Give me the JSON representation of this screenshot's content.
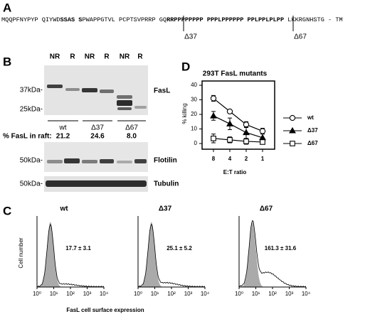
{
  "panel_a": {
    "letter": "A",
    "sequence": [
      {
        "text": "MQQPFNYPYP QIYWD",
        "bold": false
      },
      {
        "text": "SSAS S",
        "bold": true
      },
      {
        "text": "PWAPPGTVL PCPTSVPRRP GQ",
        "bold": false
      },
      {
        "text": "RRPPPPPPPP PPPLPPPPPP PPLPPLPLPP",
        "bold": true
      },
      {
        "text": " LKKRGNHSTG - TM",
        "bold": false
      }
    ],
    "markers": [
      "Δ37",
      "Δ67"
    ]
  },
  "panel_b": {
    "letter": "B",
    "lanes": [
      "NR",
      "R",
      "NR",
      "R",
      "NR",
      "R"
    ],
    "fasl_blot": {
      "markers": [
        "37kDa-",
        "25kDa-"
      ],
      "label": "FasL"
    },
    "groups": [
      "wt",
      "Δ37",
      "Δ67"
    ],
    "raft_label": "% FasL in raft:",
    "raft_values": [
      "21.2",
      "24.6",
      "8.0"
    ],
    "flotilin_blot": {
      "marker": "50kDa-",
      "label": "Flotilin"
    },
    "tubulin_blot": {
      "marker": "50kDa-",
      "label": "Tubulin"
    }
  },
  "panel_c": {
    "letter": "C",
    "y_label": "Cell number",
    "x_label": "FasL cell surface expression",
    "x_ticks": [
      "10⁰",
      "10¹",
      "10²",
      "10³",
      "10⁴"
    ],
    "histograms": [
      {
        "title": "wt",
        "value": "17.7 ± 3.1"
      },
      {
        "title": "Δ37",
        "value": "25.1 ± 5.2"
      },
      {
        "title": "Δ67",
        "value": "161.3 ± 31.6"
      }
    ]
  },
  "panel_d": {
    "letter": "D"
  },
  "chart_data": {
    "type": "line",
    "title": "293T FasL mutants",
    "x_label": "E:T ratio",
    "y_label": "% killing",
    "categories": [
      "8",
      "4",
      "2",
      "1"
    ],
    "ylim": [
      0,
      40
    ],
    "yticks": [
      0,
      10,
      20,
      30,
      40
    ],
    "legend": "right",
    "series": [
      {
        "name": "wt",
        "color": "#000000",
        "marker": "circle-open",
        "values": [
          31,
          22,
          13,
          8.5
        ],
        "errors": [
          2,
          1,
          2,
          2
        ]
      },
      {
        "name": "Δ37",
        "color": "#000000",
        "marker": "triangle-filled",
        "values": [
          19,
          13.5,
          7.5,
          4
        ],
        "errors": [
          3,
          4,
          4,
          2.5
        ]
      },
      {
        "name": "Δ67",
        "color": "#000000",
        "marker": "square-open",
        "values": [
          3.5,
          2.5,
          1.5,
          1
        ],
        "errors": [
          3,
          2,
          2,
          1
        ]
      }
    ]
  }
}
